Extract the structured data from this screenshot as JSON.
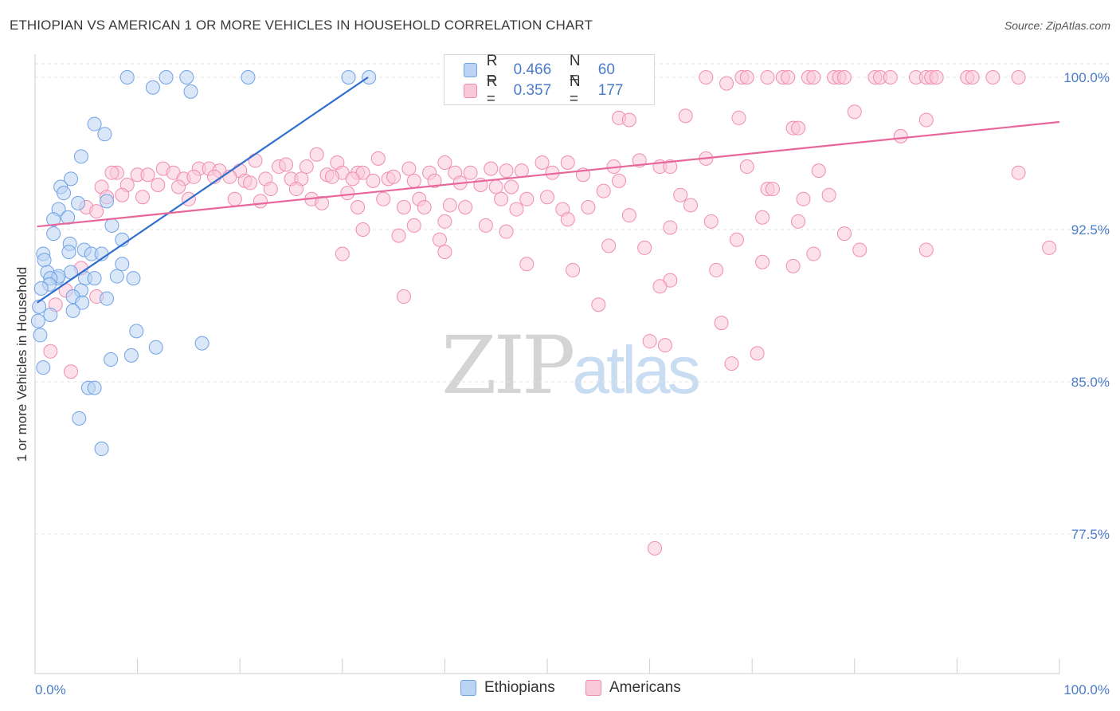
{
  "title": "ETHIOPIAN VS AMERICAN 1 OR MORE VEHICLES IN HOUSEHOLD CORRELATION CHART",
  "source": "Source: ZipAtlas.com",
  "watermark": {
    "zip": "ZIP",
    "atlas": "atlas"
  },
  "legend": {
    "rows": [
      {
        "r_label": "R =",
        "r_value": "0.466",
        "n_label": "N =",
        "n_value": "60"
      },
      {
        "r_label": "R =",
        "r_value": "0.357",
        "n_label": "N =",
        "n_value": "177"
      }
    ]
  },
  "chart_data": {
    "type": "scatter",
    "xlabel": "",
    "ylabel": "1 or more Vehicles in Household",
    "xlim": [
      0,
      100
    ],
    "ylim": [
      71.0,
      100.8
    ],
    "x_tick_labels": [
      "0.0%",
      "100.0%"
    ],
    "y_ticks": [
      {
        "value": 100.0,
        "label": "100.0%"
      },
      {
        "value": 92.5,
        "label": "92.5%"
      },
      {
        "value": 85.0,
        "label": "85.0%"
      },
      {
        "value": 77.5,
        "label": "77.5%"
      }
    ],
    "grid": true,
    "legend_position": "top-center",
    "colors": {
      "Ethiopians": "#6fa2e6",
      "Americans": "#f08cb0",
      "Ethiopians_line": "#2f6fcf",
      "Americans_line": "#e8679a"
    },
    "series": [
      {
        "name": "Ethiopians",
        "trendline": {
          "x": [
            0.2,
            32.5
          ],
          "y": [
            88.9,
            100.0
          ]
        },
        "points": [
          [
            9.0,
            100.0
          ],
          [
            12.8,
            100.0
          ],
          [
            14.8,
            100.0
          ],
          [
            20.8,
            100.0
          ],
          [
            30.6,
            100.0
          ],
          [
            32.6,
            100.0
          ],
          [
            11.5,
            99.5
          ],
          [
            15.2,
            99.3
          ],
          [
            5.8,
            97.7
          ],
          [
            6.8,
            97.2
          ],
          [
            4.5,
            96.1
          ],
          [
            3.5,
            95.0
          ],
          [
            2.5,
            94.6
          ],
          [
            2.8,
            94.3
          ],
          [
            4.2,
            93.8
          ],
          [
            7.0,
            93.9
          ],
          [
            2.3,
            93.5
          ],
          [
            3.2,
            93.1
          ],
          [
            1.8,
            93.0
          ],
          [
            7.5,
            92.7
          ],
          [
            1.8,
            92.3
          ],
          [
            8.5,
            92.0
          ],
          [
            3.4,
            91.8
          ],
          [
            4.8,
            91.5
          ],
          [
            5.5,
            91.3
          ],
          [
            6.5,
            91.3
          ],
          [
            3.3,
            91.4
          ],
          [
            0.8,
            91.3
          ],
          [
            0.9,
            91.0
          ],
          [
            8.5,
            90.8
          ],
          [
            1.2,
            90.4
          ],
          [
            3.5,
            90.4
          ],
          [
            2.2,
            90.1
          ],
          [
            4.9,
            90.1
          ],
          [
            2.3,
            90.2
          ],
          [
            1.5,
            90.1
          ],
          [
            5.8,
            90.1
          ],
          [
            8.0,
            90.2
          ],
          [
            9.6,
            90.1
          ],
          [
            1.4,
            89.8
          ],
          [
            0.6,
            89.6
          ],
          [
            4.5,
            89.5
          ],
          [
            7.0,
            89.1
          ],
          [
            3.7,
            89.2
          ],
          [
            4.6,
            88.9
          ],
          [
            3.7,
            88.5
          ],
          [
            0.4,
            88.7
          ],
          [
            1.5,
            88.3
          ],
          [
            9.9,
            87.5
          ],
          [
            16.3,
            86.9
          ],
          [
            11.8,
            86.7
          ],
          [
            9.4,
            86.3
          ],
          [
            7.4,
            86.1
          ],
          [
            0.8,
            85.7
          ],
          [
            5.2,
            84.7
          ],
          [
            5.8,
            84.7
          ],
          [
            4.3,
            83.2
          ],
          [
            6.5,
            81.7
          ],
          [
            0.3,
            88.0
          ],
          [
            0.5,
            87.3
          ]
        ]
      },
      {
        "name": "Americans",
        "trendline": {
          "x": [
            0.2,
            100.0
          ],
          "y": [
            92.65,
            97.8
          ]
        },
        "points": [
          [
            65.5,
            100.0
          ],
          [
            69.0,
            100.0
          ],
          [
            69.5,
            100.0
          ],
          [
            71.5,
            100.0
          ],
          [
            73.0,
            100.0
          ],
          [
            73.5,
            100.0
          ],
          [
            75.5,
            100.0
          ],
          [
            76.0,
            100.0
          ],
          [
            78.0,
            100.0
          ],
          [
            78.5,
            100.0
          ],
          [
            79.0,
            100.0
          ],
          [
            82.0,
            100.0
          ],
          [
            82.5,
            100.0
          ],
          [
            83.5,
            100.0
          ],
          [
            86.0,
            100.0
          ],
          [
            87.0,
            100.0
          ],
          [
            87.5,
            100.0
          ],
          [
            88.0,
            100.0
          ],
          [
            91.0,
            100.0
          ],
          [
            91.5,
            100.0
          ],
          [
            93.5,
            100.0
          ],
          [
            96.0,
            100.0
          ],
          [
            67.5,
            99.7
          ],
          [
            55.0,
            99.8
          ],
          [
            54.0,
            99.3
          ],
          [
            80.0,
            98.3
          ],
          [
            63.5,
            98.1
          ],
          [
            68.7,
            98.0
          ],
          [
            57.0,
            98.0
          ],
          [
            58.0,
            97.9
          ],
          [
            87.0,
            97.9
          ],
          [
            74.0,
            97.5
          ],
          [
            74.5,
            97.5
          ],
          [
            84.5,
            97.1
          ],
          [
            27.5,
            96.2
          ],
          [
            29.5,
            95.8
          ],
          [
            40.0,
            95.8
          ],
          [
            33.5,
            96.0
          ],
          [
            59.0,
            95.9
          ],
          [
            65.5,
            96.0
          ],
          [
            21.5,
            95.9
          ],
          [
            23.8,
            95.6
          ],
          [
            12.5,
            95.5
          ],
          [
            8.0,
            95.3
          ],
          [
            16.0,
            95.5
          ],
          [
            17.0,
            95.5
          ],
          [
            18.0,
            95.4
          ],
          [
            20.0,
            95.4
          ],
          [
            24.5,
            95.7
          ],
          [
            26.5,
            95.6
          ],
          [
            28.5,
            95.2
          ],
          [
            30.0,
            95.3
          ],
          [
            31.5,
            95.3
          ],
          [
            32.0,
            95.3
          ],
          [
            34.5,
            95.0
          ],
          [
            36.5,
            95.5
          ],
          [
            38.5,
            95.3
          ],
          [
            41.0,
            95.3
          ],
          [
            42.5,
            95.3
          ],
          [
            44.5,
            95.5
          ],
          [
            46.0,
            95.4
          ],
          [
            47.5,
            95.4
          ],
          [
            49.5,
            95.8
          ],
          [
            50.5,
            95.3
          ],
          [
            52.0,
            95.8
          ],
          [
            56.5,
            95.6
          ],
          [
            61.0,
            95.6
          ],
          [
            62.0,
            95.6
          ],
          [
            69.5,
            95.6
          ],
          [
            76.5,
            95.4
          ],
          [
            7.5,
            95.3
          ],
          [
            10.0,
            95.2
          ],
          [
            11.0,
            95.2
          ],
          [
            13.5,
            95.3
          ],
          [
            14.5,
            95.0
          ],
          [
            15.5,
            95.1
          ],
          [
            17.5,
            95.1
          ],
          [
            19.0,
            95.1
          ],
          [
            20.5,
            94.9
          ],
          [
            22.5,
            95.0
          ],
          [
            25.0,
            95.0
          ],
          [
            26.0,
            95.0
          ],
          [
            29.0,
            95.1
          ],
          [
            31.0,
            95.0
          ],
          [
            33.0,
            94.9
          ],
          [
            35.0,
            95.1
          ],
          [
            37.0,
            94.9
          ],
          [
            39.0,
            94.9
          ],
          [
            41.5,
            94.8
          ],
          [
            43.5,
            94.7
          ],
          [
            45.0,
            94.6
          ],
          [
            46.5,
            94.6
          ],
          [
            53.5,
            95.2
          ],
          [
            57.0,
            94.9
          ],
          [
            71.5,
            94.5
          ],
          [
            75.0,
            94.0
          ],
          [
            77.5,
            94.2
          ],
          [
            96.0,
            95.3
          ],
          [
            6.5,
            94.6
          ],
          [
            9.0,
            94.7
          ],
          [
            12.0,
            94.7
          ],
          [
            14.0,
            94.6
          ],
          [
            21.0,
            94.8
          ],
          [
            23.0,
            94.5
          ],
          [
            25.5,
            94.5
          ],
          [
            30.5,
            94.3
          ],
          [
            34.0,
            94.0
          ],
          [
            37.5,
            94.0
          ],
          [
            45.5,
            94.0
          ],
          [
            48.0,
            94.0
          ],
          [
            50.0,
            94.1
          ],
          [
            55.5,
            94.4
          ],
          [
            63.0,
            94.2
          ],
          [
            72.0,
            94.5
          ],
          [
            7.0,
            94.1
          ],
          [
            8.5,
            94.2
          ],
          [
            10.5,
            94.1
          ],
          [
            15.0,
            94.0
          ],
          [
            19.5,
            94.0
          ],
          [
            22.0,
            93.9
          ],
          [
            27.0,
            94.0
          ],
          [
            28.0,
            93.8
          ],
          [
            31.5,
            93.6
          ],
          [
            36.0,
            93.6
          ],
          [
            38.0,
            93.6
          ],
          [
            40.5,
            93.7
          ],
          [
            42.0,
            93.6
          ],
          [
            47.0,
            93.5
          ],
          [
            51.5,
            93.5
          ],
          [
            54.0,
            93.6
          ],
          [
            58.0,
            93.2
          ],
          [
            64.0,
            93.7
          ],
          [
            5.0,
            93.6
          ],
          [
            6.0,
            93.4
          ],
          [
            32.0,
            92.5
          ],
          [
            37.0,
            92.7
          ],
          [
            44.0,
            92.7
          ],
          [
            52.0,
            93.0
          ],
          [
            62.0,
            92.6
          ],
          [
            66.0,
            92.9
          ],
          [
            71.0,
            93.1
          ],
          [
            74.5,
            92.9
          ],
          [
            79.0,
            92.3
          ],
          [
            40.0,
            92.9
          ],
          [
            46.0,
            92.4
          ],
          [
            35.5,
            92.2
          ],
          [
            39.5,
            92.0
          ],
          [
            56.0,
            91.7
          ],
          [
            59.5,
            91.6
          ],
          [
            68.5,
            92.0
          ],
          [
            76.0,
            91.3
          ],
          [
            80.5,
            91.5
          ],
          [
            87.0,
            91.5
          ],
          [
            99.0,
            91.6
          ],
          [
            30.0,
            91.3
          ],
          [
            40.0,
            91.4
          ],
          [
            48.0,
            90.8
          ],
          [
            52.5,
            90.5
          ],
          [
            66.5,
            90.5
          ],
          [
            71.0,
            90.9
          ],
          [
            74.0,
            90.7
          ],
          [
            4.5,
            90.6
          ],
          [
            62.0,
            90.0
          ],
          [
            61.0,
            89.7
          ],
          [
            3.0,
            89.5
          ],
          [
            6.0,
            89.2
          ],
          [
            55.0,
            88.8
          ],
          [
            36.0,
            89.2
          ],
          [
            2.0,
            88.8
          ],
          [
            67.0,
            87.9
          ],
          [
            60.0,
            87.0
          ],
          [
            61.5,
            86.8
          ],
          [
            70.5,
            86.4
          ],
          [
            68.0,
            85.9
          ],
          [
            3.5,
            85.5
          ],
          [
            60.5,
            76.8
          ],
          [
            1.5,
            86.5
          ]
        ]
      }
    ]
  }
}
